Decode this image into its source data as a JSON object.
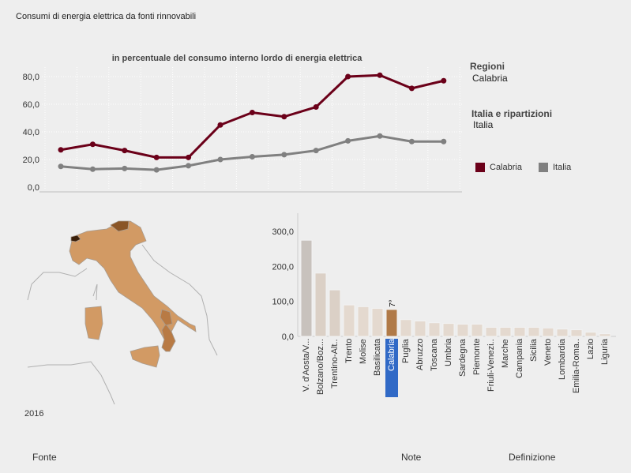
{
  "title": "Consumi di energia elettrica da fonti rinnovabili",
  "selectors": {
    "regions_label": "Regioni",
    "region_value": "Calabria",
    "italy_label": "Italia e ripartizioni",
    "italy_value": "Italia"
  },
  "legend": [
    {
      "label": "Calabria",
      "color": "#6b0019"
    },
    {
      "label": "Italia",
      "color": "#808080"
    }
  ],
  "year_label": "2016",
  "footer": {
    "fonte": "Fonte",
    "note": "Note",
    "definizione": "Definizione"
  },
  "chart_data": [
    {
      "type": "line",
      "title": "in percentuale del consumo interno lordo di energia elettrica",
      "ylim": [
        0,
        85
      ],
      "yticks": [
        "0,0",
        "20,0",
        "40,0",
        "60,0",
        "80,0"
      ],
      "ytick_values": [
        0,
        20,
        40,
        60,
        80
      ],
      "grid": true,
      "series": [
        {
          "name": "Calabria",
          "color": "#6b0019",
          "values": [
            27,
            31,
            26.5,
            21.5,
            21.5,
            45,
            54,
            51,
            58,
            80,
            81,
            71.5,
            77
          ]
        },
        {
          "name": "Italia",
          "color": "#808080",
          "values": [
            15,
            13,
            13.5,
            12.5,
            15.5,
            20,
            22,
            23.5,
            26.5,
            33.5,
            37,
            33,
            33
          ]
        }
      ]
    },
    {
      "type": "bar",
      "ylim": [
        0,
        320
      ],
      "yticks": [
        "0,0",
        "100,0",
        "200,0",
        "300,0"
      ],
      "ytick_values": [
        0,
        100,
        200,
        300
      ],
      "categories": [
        "V. d'Aosta/V...",
        "Bolzano/Boz...",
        "Trentino-Alt..",
        "Trento",
        "Molise",
        "Basilicata",
        "Calabria",
        "Puglia",
        "Abruzzo",
        "Toscana",
        "Umbria",
        "Sardegna",
        "Piemonte",
        "Friuli-Venezi..",
        "Marche",
        "Campania",
        "Sicilia",
        "Veneto",
        "Lombardia",
        "Emilia-Roma..",
        "Lazio",
        "Liguria"
      ],
      "values": [
        275,
        181,
        133,
        90,
        85,
        80,
        77,
        48,
        44,
        39,
        37,
        35,
        35,
        26,
        26,
        26,
        26,
        24,
        21,
        19,
        12,
        7.5
      ],
      "highlight": "Calabria",
      "highlight_rank": "7°",
      "highlight_color": "#b07a48",
      "highlight_label_bg": "#3069c6"
    }
  ]
}
